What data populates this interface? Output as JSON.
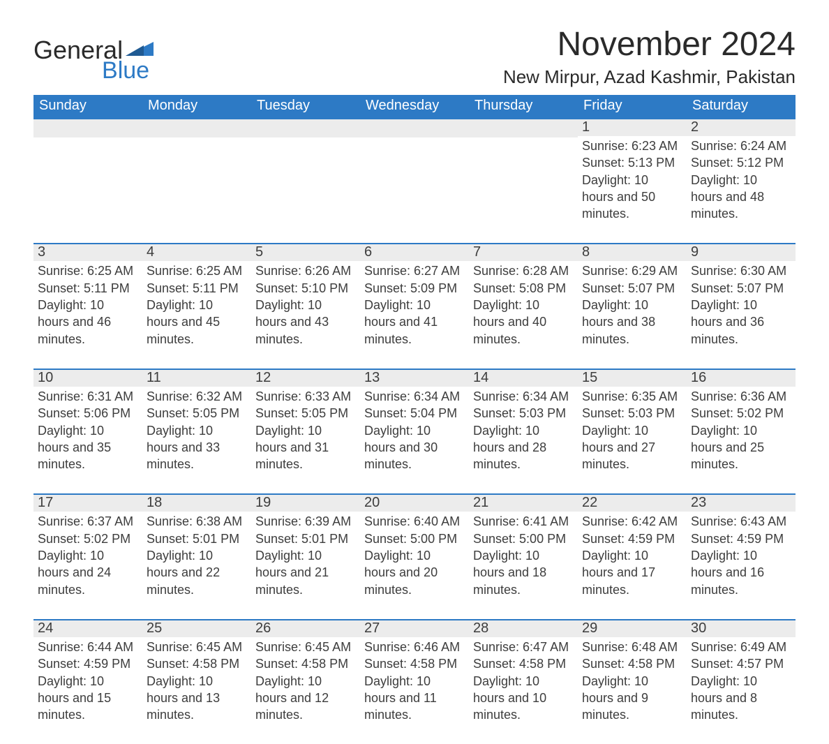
{
  "brand": {
    "word1": "General",
    "word2": "Blue"
  },
  "title": "November 2024",
  "location": "New Mirpur, Azad Kashmir, Pakistan",
  "colors": {
    "brand_blue": "#2d7ac5",
    "header_bg": "#2d7ac5",
    "day_number_bg": "#ececec",
    "row_border": "#2d7ac5",
    "text": "#333333",
    "background": "#ffffff"
  },
  "weekdays": [
    "Sunday",
    "Monday",
    "Tuesday",
    "Wednesday",
    "Thursday",
    "Friday",
    "Saturday"
  ],
  "grid": [
    [
      null,
      null,
      null,
      null,
      null,
      {
        "n": "1",
        "sunrise": "6:23 AM",
        "sunset": "5:13 PM",
        "daylight": "10 hours and 50 minutes."
      },
      {
        "n": "2",
        "sunrise": "6:24 AM",
        "sunset": "5:12 PM",
        "daylight": "10 hours and 48 minutes."
      }
    ],
    [
      {
        "n": "3",
        "sunrise": "6:25 AM",
        "sunset": "5:11 PM",
        "daylight": "10 hours and 46 minutes."
      },
      {
        "n": "4",
        "sunrise": "6:25 AM",
        "sunset": "5:11 PM",
        "daylight": "10 hours and 45 minutes."
      },
      {
        "n": "5",
        "sunrise": "6:26 AM",
        "sunset": "5:10 PM",
        "daylight": "10 hours and 43 minutes."
      },
      {
        "n": "6",
        "sunrise": "6:27 AM",
        "sunset": "5:09 PM",
        "daylight": "10 hours and 41 minutes."
      },
      {
        "n": "7",
        "sunrise": "6:28 AM",
        "sunset": "5:08 PM",
        "daylight": "10 hours and 40 minutes."
      },
      {
        "n": "8",
        "sunrise": "6:29 AM",
        "sunset": "5:07 PM",
        "daylight": "10 hours and 38 minutes."
      },
      {
        "n": "9",
        "sunrise": "6:30 AM",
        "sunset": "5:07 PM",
        "daylight": "10 hours and 36 minutes."
      }
    ],
    [
      {
        "n": "10",
        "sunrise": "6:31 AM",
        "sunset": "5:06 PM",
        "daylight": "10 hours and 35 minutes."
      },
      {
        "n": "11",
        "sunrise": "6:32 AM",
        "sunset": "5:05 PM",
        "daylight": "10 hours and 33 minutes."
      },
      {
        "n": "12",
        "sunrise": "6:33 AM",
        "sunset": "5:05 PM",
        "daylight": "10 hours and 31 minutes."
      },
      {
        "n": "13",
        "sunrise": "6:34 AM",
        "sunset": "5:04 PM",
        "daylight": "10 hours and 30 minutes."
      },
      {
        "n": "14",
        "sunrise": "6:34 AM",
        "sunset": "5:03 PM",
        "daylight": "10 hours and 28 minutes."
      },
      {
        "n": "15",
        "sunrise": "6:35 AM",
        "sunset": "5:03 PM",
        "daylight": "10 hours and 27 minutes."
      },
      {
        "n": "16",
        "sunrise": "6:36 AM",
        "sunset": "5:02 PM",
        "daylight": "10 hours and 25 minutes."
      }
    ],
    [
      {
        "n": "17",
        "sunrise": "6:37 AM",
        "sunset": "5:02 PM",
        "daylight": "10 hours and 24 minutes."
      },
      {
        "n": "18",
        "sunrise": "6:38 AM",
        "sunset": "5:01 PM",
        "daylight": "10 hours and 22 minutes."
      },
      {
        "n": "19",
        "sunrise": "6:39 AM",
        "sunset": "5:01 PM",
        "daylight": "10 hours and 21 minutes."
      },
      {
        "n": "20",
        "sunrise": "6:40 AM",
        "sunset": "5:00 PM",
        "daylight": "10 hours and 20 minutes."
      },
      {
        "n": "21",
        "sunrise": "6:41 AM",
        "sunset": "5:00 PM",
        "daylight": "10 hours and 18 minutes."
      },
      {
        "n": "22",
        "sunrise": "6:42 AM",
        "sunset": "4:59 PM",
        "daylight": "10 hours and 17 minutes."
      },
      {
        "n": "23",
        "sunrise": "6:43 AM",
        "sunset": "4:59 PM",
        "daylight": "10 hours and 16 minutes."
      }
    ],
    [
      {
        "n": "24",
        "sunrise": "6:44 AM",
        "sunset": "4:59 PM",
        "daylight": "10 hours and 15 minutes."
      },
      {
        "n": "25",
        "sunrise": "6:45 AM",
        "sunset": "4:58 PM",
        "daylight": "10 hours and 13 minutes."
      },
      {
        "n": "26",
        "sunrise": "6:45 AM",
        "sunset": "4:58 PM",
        "daylight": "10 hours and 12 minutes."
      },
      {
        "n": "27",
        "sunrise": "6:46 AM",
        "sunset": "4:58 PM",
        "daylight": "10 hours and 11 minutes."
      },
      {
        "n": "28",
        "sunrise": "6:47 AM",
        "sunset": "4:58 PM",
        "daylight": "10 hours and 10 minutes."
      },
      {
        "n": "29",
        "sunrise": "6:48 AM",
        "sunset": "4:58 PM",
        "daylight": "10 hours and 9 minutes."
      },
      {
        "n": "30",
        "sunrise": "6:49 AM",
        "sunset": "4:57 PM",
        "daylight": "10 hours and 8 minutes."
      }
    ]
  ],
  "labels": {
    "sunrise": "Sunrise: ",
    "sunset": "Sunset: ",
    "daylight": "Daylight: "
  }
}
